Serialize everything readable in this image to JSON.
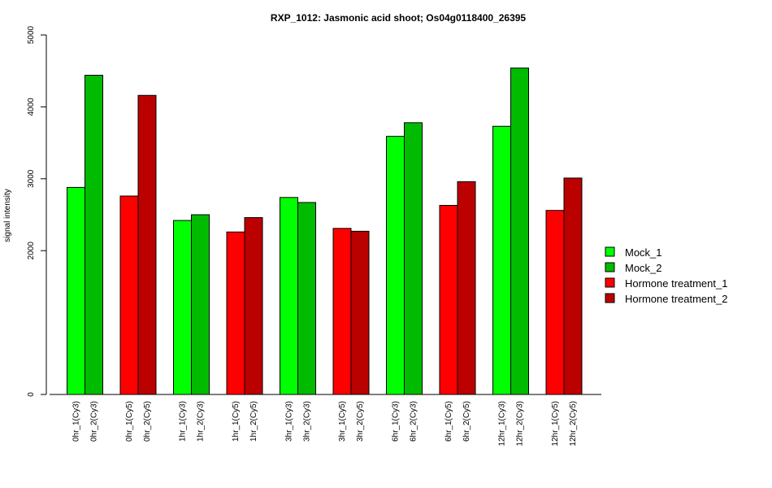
{
  "chart_data": {
    "type": "bar",
    "title": "RXP_1012: Jasmonic acid shoot; Os04g0118400_26395",
    "ylabel": "signal intensity",
    "xlabel": "",
    "ylim": [
      0,
      5000
    ],
    "y_ticks": [
      0,
      2000,
      3000,
      4000,
      5000
    ],
    "y_ticks_labels": [
      "0",
      "2000",
      "3000",
      "4000",
      "5000"
    ],
    "grid": false,
    "legend_position": "right",
    "series_legend": [
      {
        "name": "Mock_1",
        "color": "#00ff00"
      },
      {
        "name": "Mock_2",
        "color": "#00bb00"
      },
      {
        "name": "Hormone treatment_1",
        "color": "#ff0000"
      },
      {
        "name": "Hormone treatment_2",
        "color": "#bb0000"
      }
    ],
    "groups": [
      {
        "bars": [
          {
            "label": "0hr_1(Cy3)",
            "value": 2880,
            "color": "#00ff00"
          },
          {
            "label": "0hr_2(Cy3)",
            "value": 4440,
            "color": "#00bb00"
          }
        ]
      },
      {
        "bars": [
          {
            "label": "0hr_1(Cy5)",
            "value": 2760,
            "color": "#ff0000"
          },
          {
            "label": "0hr_2(Cy5)",
            "value": 4160,
            "color": "#bb0000"
          }
        ]
      },
      {
        "bars": [
          {
            "label": "1hr_1(Cy3)",
            "value": 2420,
            "color": "#00ff00"
          },
          {
            "label": "1hr_2(Cy3)",
            "value": 2500,
            "color": "#00bb00"
          }
        ]
      },
      {
        "bars": [
          {
            "label": "1hr_1(Cy5)",
            "value": 2260,
            "color": "#ff0000"
          },
          {
            "label": "1hr_2(Cy5)",
            "value": 2460,
            "color": "#bb0000"
          }
        ]
      },
      {
        "bars": [
          {
            "label": "3hr_1(Cy3)",
            "value": 2740,
            "color": "#00ff00"
          },
          {
            "label": "3hr_2(Cy3)",
            "value": 2670,
            "color": "#00bb00"
          }
        ]
      },
      {
        "bars": [
          {
            "label": "3hr_1(Cy5)",
            "value": 2310,
            "color": "#ff0000"
          },
          {
            "label": "3hr_2(Cy5)",
            "value": 2270,
            "color": "#bb0000"
          }
        ]
      },
      {
        "bars": [
          {
            "label": "6hr_1(Cy3)",
            "value": 3590,
            "color": "#00ff00"
          },
          {
            "label": "6hr_2(Cy3)",
            "value": 3780,
            "color": "#00bb00"
          }
        ]
      },
      {
        "bars": [
          {
            "label": "6hr_1(Cy5)",
            "value": 2630,
            "color": "#ff0000"
          },
          {
            "label": "6hr_2(Cy5)",
            "value": 2960,
            "color": "#bb0000"
          }
        ]
      },
      {
        "bars": [
          {
            "label": "12hr_1(Cy3)",
            "value": 3730,
            "color": "#00ff00"
          },
          {
            "label": "12hr_2(Cy3)",
            "value": 4540,
            "color": "#00bb00"
          }
        ]
      },
      {
        "bars": [
          {
            "label": "12hr_1(Cy5)",
            "value": 2560,
            "color": "#ff0000"
          },
          {
            "label": "12hr_2(Cy5)",
            "value": 3010,
            "color": "#bb0000"
          }
        ]
      }
    ]
  }
}
